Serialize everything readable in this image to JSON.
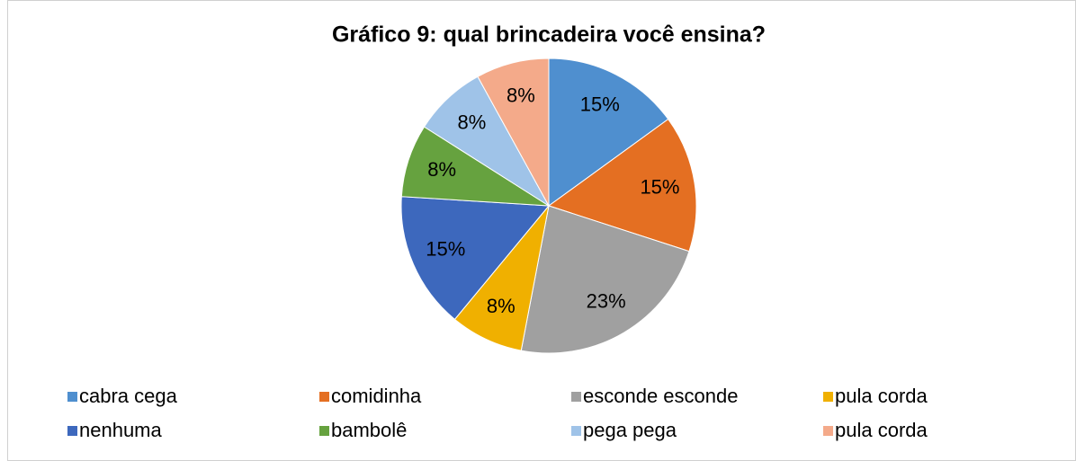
{
  "chart_data": {
    "type": "pie",
    "title": "Gráfico 9: qual brincadeira você ensina?",
    "categories": [
      "cabra cega",
      "comidinha",
      "esconde esconde",
      "pula corda",
      "nenhuma",
      "bambolê",
      "pega pega",
      "pula corda"
    ],
    "values": [
      15,
      15,
      23,
      8,
      15,
      8,
      8,
      8
    ],
    "value_labels": [
      "15%",
      "15%",
      "23%",
      "8%",
      "15%",
      "8%",
      "8%",
      "8%"
    ],
    "colors": [
      "#4f8fcf",
      "#e46f22",
      "#a0a0a0",
      "#f0b000",
      "#3d68bd",
      "#66a23f",
      "#9fc3e8",
      "#f4aa8a"
    ]
  }
}
